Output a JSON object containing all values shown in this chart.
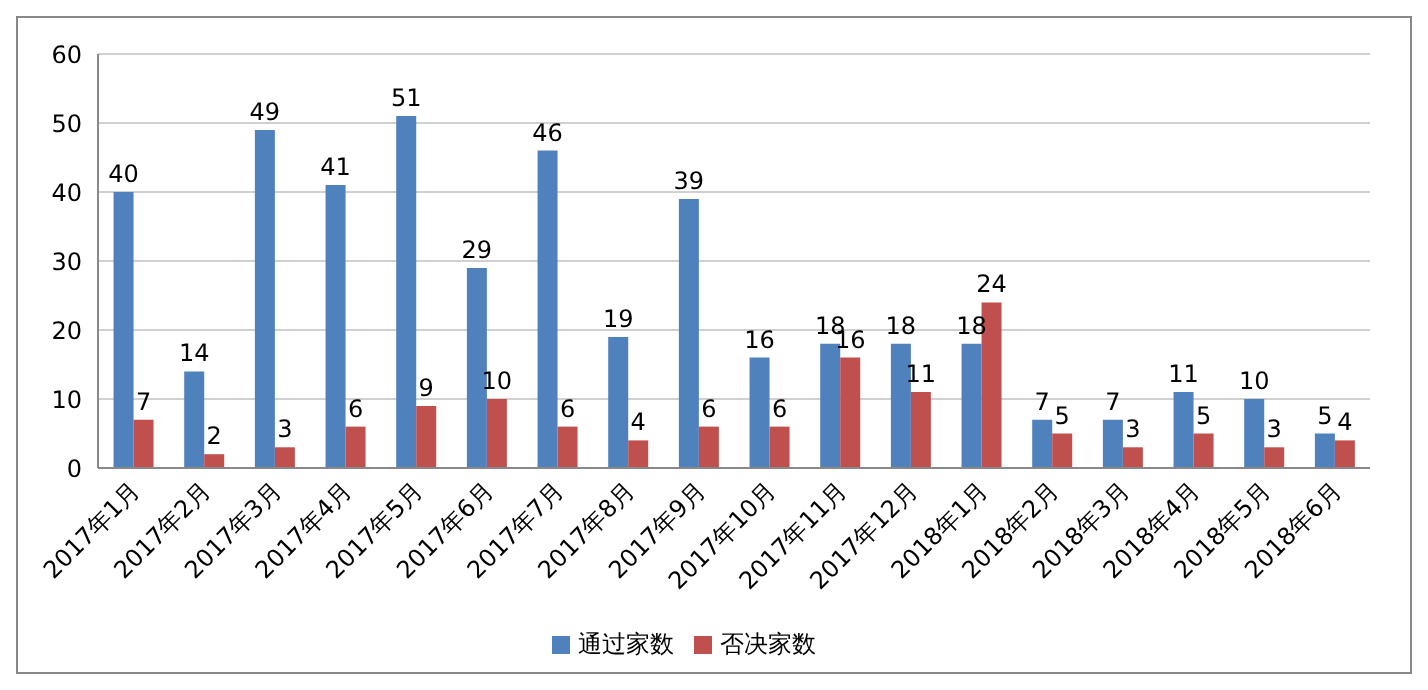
{
  "chart_data": {
    "type": "bar",
    "categories": [
      "2017年1月",
      "2017年2月",
      "2017年3月",
      "2017年4月",
      "2017年5月",
      "2017年6月",
      "2017年7月",
      "2017年8月",
      "2017年9月",
      "2017年10月",
      "2017年11月",
      "2017年12月",
      "2018年1月",
      "2018年2月",
      "2018年3月",
      "2018年4月",
      "2018年5月",
      "2018年6月"
    ],
    "series": [
      {
        "name": "通过家数",
        "color": "#4f81bd",
        "values": [
          40,
          14,
          49,
          41,
          51,
          29,
          46,
          19,
          39,
          16,
          18,
          18,
          18,
          7,
          7,
          11,
          10,
          5
        ]
      },
      {
        "name": "否决家数",
        "color": "#c0504d",
        "values": [
          7,
          2,
          3,
          6,
          9,
          10,
          6,
          4,
          6,
          6,
          16,
          11,
          24,
          5,
          3,
          5,
          3,
          4
        ]
      }
    ],
    "ylim": [
      0,
      60
    ],
    "yticks": [
      0,
      10,
      20,
      30,
      40,
      50,
      60
    ],
    "grid": "y",
    "legend": "bottom",
    "data_labels": true
  }
}
